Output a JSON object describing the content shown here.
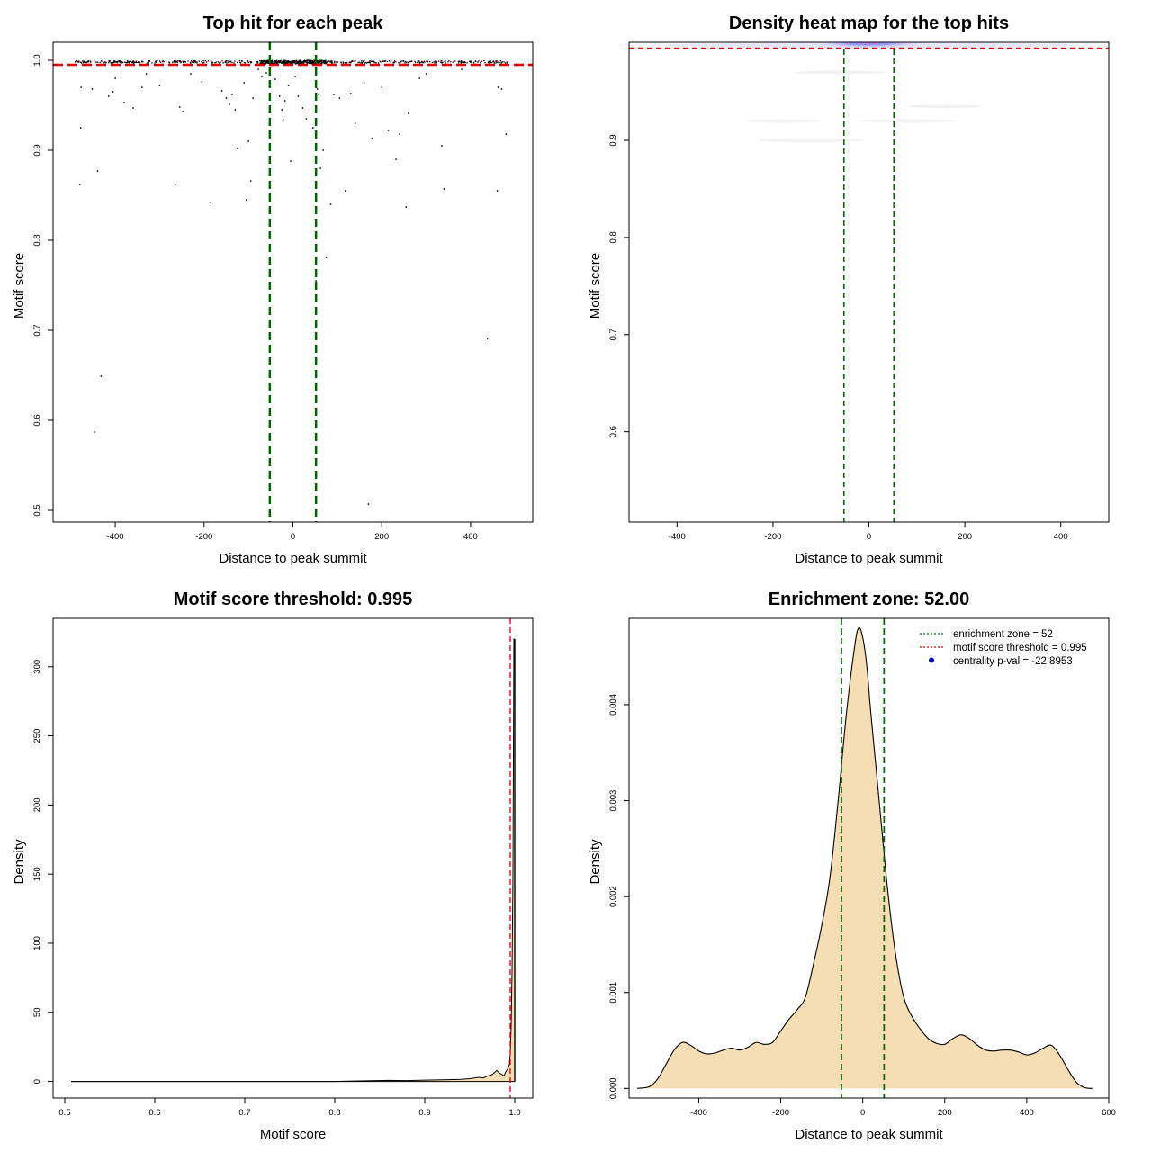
{
  "chart_data": [
    {
      "type": "scatter",
      "title": "Top hit for each peak",
      "xlabel": "Distance to peak summit",
      "ylabel": "Motif score",
      "xlim": [
        -540,
        540
      ],
      "ylim": [
        0.487,
        1.02
      ],
      "xticks": [
        "-400",
        "-200",
        "0",
        "200",
        "400"
      ],
      "yticks": [
        "0.5",
        "0.6",
        "0.7",
        "0.8",
        "0.9",
        "1.0"
      ],
      "threshold": 0.995,
      "enrichment_zone": [
        -52,
        52
      ],
      "threshold_color": "#dd0000",
      "zone_color": "#006400",
      "outlier_points": [
        {
          "x": -480,
          "y": 0.862
        },
        {
          "x": -478,
          "y": 0.925
        },
        {
          "x": -477,
          "y": 0.97
        },
        {
          "x": -452,
          "y": 0.968
        },
        {
          "x": -447,
          "y": 0.587
        },
        {
          "x": -440,
          "y": 0.877
        },
        {
          "x": -432,
          "y": 0.649
        },
        {
          "x": -415,
          "y": 0.96
        },
        {
          "x": -405,
          "y": 0.965
        },
        {
          "x": -400,
          "y": 0.98
        },
        {
          "x": -380,
          "y": 0.953
        },
        {
          "x": -360,
          "y": 0.947
        },
        {
          "x": -340,
          "y": 0.97
        },
        {
          "x": -330,
          "y": 0.985
        },
        {
          "x": -300,
          "y": 0.972
        },
        {
          "x": -265,
          "y": 0.862
        },
        {
          "x": -255,
          "y": 0.948
        },
        {
          "x": -248,
          "y": 0.943
        },
        {
          "x": -230,
          "y": 0.985
        },
        {
          "x": -205,
          "y": 0.976
        },
        {
          "x": -185,
          "y": 0.842
        },
        {
          "x": -160,
          "y": 0.966
        },
        {
          "x": -150,
          "y": 0.958
        },
        {
          "x": -143,
          "y": 0.951
        },
        {
          "x": -137,
          "y": 0.962
        },
        {
          "x": -130,
          "y": 0.945
        },
        {
          "x": -125,
          "y": 0.902
        },
        {
          "x": -110,
          "y": 0.975
        },
        {
          "x": -105,
          "y": 0.845
        },
        {
          "x": -100,
          "y": 0.91
        },
        {
          "x": -95,
          "y": 0.866
        },
        {
          "x": -90,
          "y": 0.958
        },
        {
          "x": -78,
          "y": 0.99
        },
        {
          "x": -70,
          "y": 0.982
        },
        {
          "x": -60,
          "y": 0.986
        },
        {
          "x": -52,
          "y": 0.89
        },
        {
          "x": -40,
          "y": 0.979
        },
        {
          "x": -30,
          "y": 0.96
        },
        {
          "x": -25,
          "y": 0.945
        },
        {
          "x": -22,
          "y": 0.934
        },
        {
          "x": -18,
          "y": 0.955
        },
        {
          "x": -10,
          "y": 0.972
        },
        {
          "x": -5,
          "y": 0.888
        },
        {
          "x": 5,
          "y": 0.982
        },
        {
          "x": 12,
          "y": 0.96
        },
        {
          "x": 22,
          "y": 0.947
        },
        {
          "x": 30,
          "y": 0.935
        },
        {
          "x": 45,
          "y": 0.925
        },
        {
          "x": 52,
          "y": 0.755
        },
        {
          "x": 55,
          "y": 0.968
        },
        {
          "x": 58,
          "y": 0.962
        },
        {
          "x": 62,
          "y": 0.88
        },
        {
          "x": 68,
          "y": 0.9
        },
        {
          "x": 75,
          "y": 0.781
        },
        {
          "x": 85,
          "y": 0.84
        },
        {
          "x": 92,
          "y": 0.962
        },
        {
          "x": 105,
          "y": 0.958
        },
        {
          "x": 118,
          "y": 0.855
        },
        {
          "x": 130,
          "y": 0.963
        },
        {
          "x": 140,
          "y": 0.93
        },
        {
          "x": 160,
          "y": 0.975
        },
        {
          "x": 170,
          "y": 0.507
        },
        {
          "x": 178,
          "y": 0.913
        },
        {
          "x": 200,
          "y": 0.97
        },
        {
          "x": 215,
          "y": 0.922
        },
        {
          "x": 232,
          "y": 0.89
        },
        {
          "x": 240,
          "y": 0.918
        },
        {
          "x": 255,
          "y": 0.837
        },
        {
          "x": 260,
          "y": 0.941
        },
        {
          "x": 285,
          "y": 0.98
        },
        {
          "x": 300,
          "y": 0.985
        },
        {
          "x": 335,
          "y": 0.905
        },
        {
          "x": 340,
          "y": 0.857
        },
        {
          "x": 380,
          "y": 0.99
        },
        {
          "x": 438,
          "y": 0.691
        },
        {
          "x": 460,
          "y": 0.855
        },
        {
          "x": 462,
          "y": 0.97
        },
        {
          "x": 470,
          "y": 0.968
        },
        {
          "x": 480,
          "y": 0.918
        }
      ]
    },
    {
      "type": "heatmap",
      "title": "Density heat map for the top hits",
      "xlabel": "Distance to peak summit",
      "ylabel": "Motif score",
      "xlim": [
        -500,
        500
      ],
      "ylim": [
        0.507,
        1.001
      ],
      "xticks": [
        "-400",
        "-200",
        "0",
        "200",
        "400"
      ],
      "yticks": [
        "0.6",
        "0.7",
        "0.8",
        "0.9"
      ],
      "threshold": 0.995,
      "enrichment_zone": [
        -52,
        52
      ],
      "hotspot": {
        "x": 0,
        "y": 1.0,
        "color": "#3030ff"
      }
    },
    {
      "type": "area",
      "title": "Motif score threshold: 0.995",
      "xlabel": "Motif score",
      "ylabel": "Density",
      "xlim": [
        0.487,
        1.02
      ],
      "ylim": [
        -12,
        335
      ],
      "xticks": [
        "0.5",
        "0.6",
        "0.7",
        "0.8",
        "0.9",
        "1.0"
      ],
      "yticks": [
        "0",
        "50",
        "100",
        "150",
        "200",
        "250",
        "300"
      ],
      "threshold": 0.995,
      "fill_color": "#f5deb3",
      "x": [
        0.507,
        0.6,
        0.7,
        0.8,
        0.84,
        0.86,
        0.88,
        0.9,
        0.92,
        0.94,
        0.95,
        0.96,
        0.965,
        0.97,
        0.975,
        0.98,
        0.983,
        0.986,
        0.988,
        0.99,
        0.992,
        0.994,
        0.995,
        0.996,
        0.997,
        0.998,
        0.999,
        1.0
      ],
      "y": [
        0,
        0,
        0,
        0,
        0.5,
        0.8,
        0.6,
        0.9,
        1.2,
        1.5,
        2,
        3,
        2.5,
        4,
        5,
        8,
        6,
        5,
        4,
        7,
        9,
        12,
        20,
        40,
        80,
        150,
        320,
        320
      ]
    },
    {
      "type": "area",
      "title": "Enrichment zone: 52.00",
      "xlabel": "Distance to peak summit",
      "ylabel": "Density",
      "xlim": [
        -570,
        600
      ],
      "ylim": [
        -0.0001,
        0.0049
      ],
      "xticks": [
        "-400",
        "-200",
        "0",
        "200",
        "400",
        "600"
      ],
      "yticks": [
        "0.000",
        "0.001",
        "0.002",
        "0.003",
        "0.004"
      ],
      "enrichment_zone": [
        -52,
        52
      ],
      "fill_color": "#f5deb3",
      "legend": {
        "position": "top-right",
        "entries": [
          {
            "label": "enrichment zone = 52",
            "color": "#006400",
            "style": "dotted"
          },
          {
            "label": "motif score threshold = 0.995",
            "color": "#dd0000",
            "style": "dotted"
          },
          {
            "label": "centrality p-val = -22.8953",
            "color": "#0000cc",
            "style": "dot"
          }
        ]
      },
      "x": [
        -550,
        -520,
        -500,
        -480,
        -460,
        -440,
        -420,
        -400,
        -380,
        -360,
        -340,
        -320,
        -300,
        -280,
        -260,
        -240,
        -220,
        -200,
        -180,
        -160,
        -140,
        -120,
        -100,
        -80,
        -60,
        -40,
        -20,
        -10,
        0,
        10,
        20,
        40,
        60,
        80,
        100,
        120,
        140,
        160,
        180,
        200,
        220,
        240,
        260,
        280,
        300,
        320,
        340,
        360,
        380,
        400,
        420,
        440,
        460,
        480,
        500,
        520,
        540,
        560
      ],
      "y": [
        0.0,
        2e-05,
        0.0001,
        0.00025,
        0.0004,
        0.00048,
        0.00045,
        0.00039,
        0.00036,
        0.00037,
        0.0004,
        0.00042,
        0.0004,
        0.00043,
        0.00048,
        0.00046,
        0.00048,
        0.0006,
        0.00072,
        0.00082,
        0.00095,
        0.0013,
        0.0017,
        0.0022,
        0.003,
        0.0039,
        0.0046,
        0.0048,
        0.0047,
        0.0044,
        0.0039,
        0.003,
        0.0021,
        0.0014,
        0.00095,
        0.00075,
        0.00062,
        0.00052,
        0.00047,
        0.00046,
        0.00052,
        0.00056,
        0.00052,
        0.00045,
        0.0004,
        0.00039,
        0.0004,
        0.0004,
        0.00038,
        0.00035,
        0.00037,
        0.00042,
        0.00045,
        0.00035,
        0.0002,
        7e-05,
        1e-05,
        0.0
      ]
    }
  ]
}
